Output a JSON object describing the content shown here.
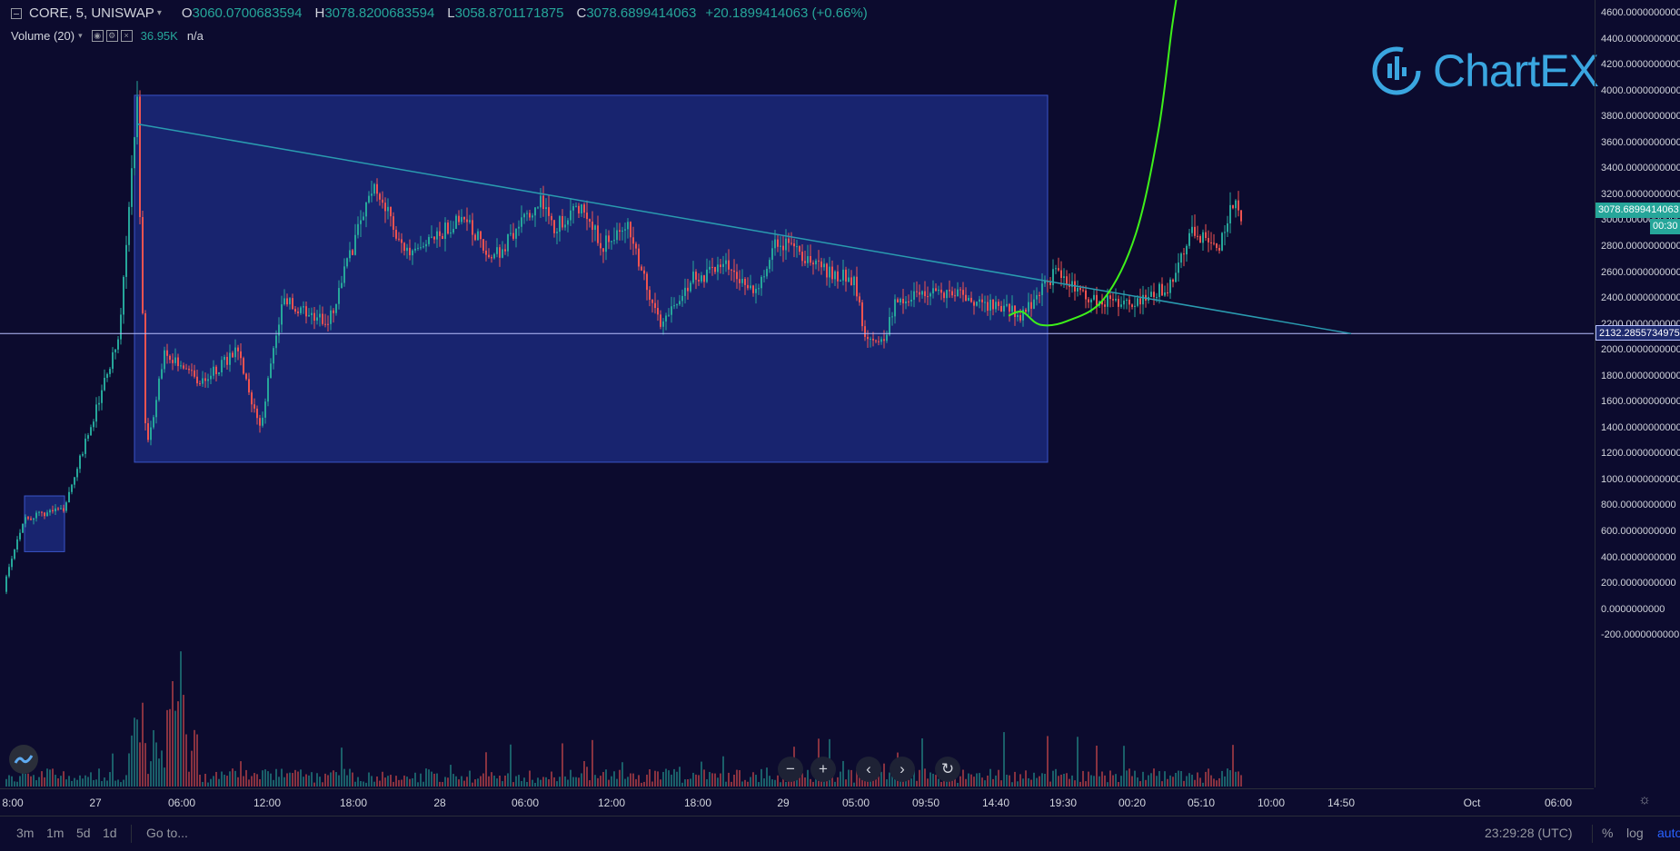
{
  "legend": {
    "symbol": "CORE, 5, UNISWAP",
    "open_key": "O",
    "open": "3060.0700683594",
    "high_key": "H",
    "high": "3078.8200683594",
    "low_key": "L",
    "low": "3058.8701171875",
    "close_key": "C",
    "close": "3078.6899414063",
    "change": "+20.1899414063 (+0.66%)",
    "volume_label": "Volume (20)",
    "volume_value": "36.95K",
    "volume_na": "n/a"
  },
  "logo": {
    "text": "ChartEX"
  },
  "price_scale": {
    "labels": [
      "4600.0000000000",
      "4400.0000000000",
      "4200.0000000000",
      "4000.0000000000",
      "3800.0000000000",
      "3600.0000000000",
      "3400.0000000000",
      "3200.0000000000",
      "3000.0000000000",
      "2800.0000000000",
      "2600.0000000000",
      "2400.0000000000",
      "2200.0000000000",
      "2000.0000000000",
      "1800.0000000000",
      "1600.0000000000",
      "1400.0000000000",
      "1200.0000000000",
      "1000.0000000000",
      "800.0000000000",
      "600.0000000000",
      "400.0000000000",
      "200.0000000000",
      "0.0000000000",
      "-200.0000000000"
    ],
    "current_price": "3078.6899414063",
    "countdown": "00:30",
    "hline_price": "2132.2855734975"
  },
  "time_scale": {
    "labels": [
      "8:00",
      "27",
      "06:00",
      "12:00",
      "18:00",
      "28",
      "06:00",
      "12:00",
      "18:00",
      "29",
      "05:00",
      "09:50",
      "14:40",
      "19:30",
      "00:20",
      "05:10",
      "10:00",
      "14:50",
      "Oct",
      "06:00"
    ]
  },
  "bottom_bar": {
    "ranges": [
      "3m",
      "1m",
      "5d",
      "1d"
    ],
    "goto": "Go to...",
    "clock": "23:29:28 (UTC)",
    "percent": "%",
    "log": "log",
    "auto": "auto"
  },
  "colors": {
    "background": "#0c0b2e",
    "up": "#26a69a",
    "down": "#ef5350",
    "rect_fill": "#1c2d86",
    "trendline": "#2a9bb0",
    "curve": "#3ef01a",
    "current_tag": "#26a69a"
  },
  "chart_data": {
    "type": "candlestick",
    "symbol": "CORE, 5, UNISWAP",
    "ylim": [
      -300,
      4700
    ],
    "price_path": [
      {
        "t": 0,
        "p": 140
      },
      {
        "t": 25,
        "p": 700
      },
      {
        "t": 70,
        "p": 790
      },
      {
        "t": 130,
        "p": 2100
      },
      {
        "t": 150,
        "p": 3900
      },
      {
        "t": 160,
        "p": 1200
      },
      {
        "t": 180,
        "p": 2000
      },
      {
        "t": 220,
        "p": 1750
      },
      {
        "t": 260,
        "p": 2000
      },
      {
        "t": 285,
        "p": 1400
      },
      {
        "t": 310,
        "p": 2400
      },
      {
        "t": 360,
        "p": 2200
      },
      {
        "t": 410,
        "p": 3300
      },
      {
        "t": 450,
        "p": 2700
      },
      {
        "t": 510,
        "p": 3050
      },
      {
        "t": 540,
        "p": 2700
      },
      {
        "t": 595,
        "p": 3150
      },
      {
        "t": 610,
        "p": 2950
      },
      {
        "t": 640,
        "p": 3150
      },
      {
        "t": 660,
        "p": 2800
      },
      {
        "t": 690,
        "p": 2950
      },
      {
        "t": 725,
        "p": 2200
      },
      {
        "t": 760,
        "p": 2550
      },
      {
        "t": 800,
        "p": 2650
      },
      {
        "t": 830,
        "p": 2450
      },
      {
        "t": 855,
        "p": 2850
      },
      {
        "t": 880,
        "p": 2750
      },
      {
        "t": 910,
        "p": 2600
      },
      {
        "t": 940,
        "p": 2550
      },
      {
        "t": 950,
        "p": 2150
      },
      {
        "t": 970,
        "p": 2050
      },
      {
        "t": 985,
        "p": 2400
      },
      {
        "t": 1050,
        "p": 2450
      },
      {
        "t": 1080,
        "p": 2350
      },
      {
        "t": 1110,
        "p": 2350
      },
      {
        "t": 1120,
        "p": 2250
      },
      {
        "t": 1160,
        "p": 2600
      },
      {
        "t": 1200,
        "p": 2400
      },
      {
        "t": 1240,
        "p": 2350
      },
      {
        "t": 1285,
        "p": 2500
      },
      {
        "t": 1310,
        "p": 2900
      },
      {
        "t": 1340,
        "p": 2800
      },
      {
        "t": 1358,
        "p": 3200
      },
      {
        "t": 1365,
        "p": 3060
      }
    ],
    "annotations": {
      "trendline": {
        "from": {
          "t": 150,
          "p": 3750
        },
        "to": {
          "t": 1487,
          "p": 2132
        }
      },
      "horizontal_line": 2132.2855734975,
      "rect_main": {
        "t1": 148,
        "t2": 1153,
        "p_top": 3970,
        "p_bottom": 1140
      },
      "rect_small": {
        "t1": 27,
        "t2": 71,
        "p_top": 880,
        "p_bottom": 450
      },
      "projection_curve": [
        {
          "t": 1110,
          "p": 2270
        },
        {
          "t": 1125,
          "p": 2300
        },
        {
          "t": 1145,
          "p": 2200
        },
        {
          "t": 1175,
          "p": 2230
        },
        {
          "t": 1215,
          "p": 2400
        },
        {
          "t": 1250,
          "p": 2900
        },
        {
          "t": 1275,
          "p": 3700
        },
        {
          "t": 1290,
          "p": 4500
        },
        {
          "t": 1298,
          "p": 4850
        }
      ]
    }
  }
}
